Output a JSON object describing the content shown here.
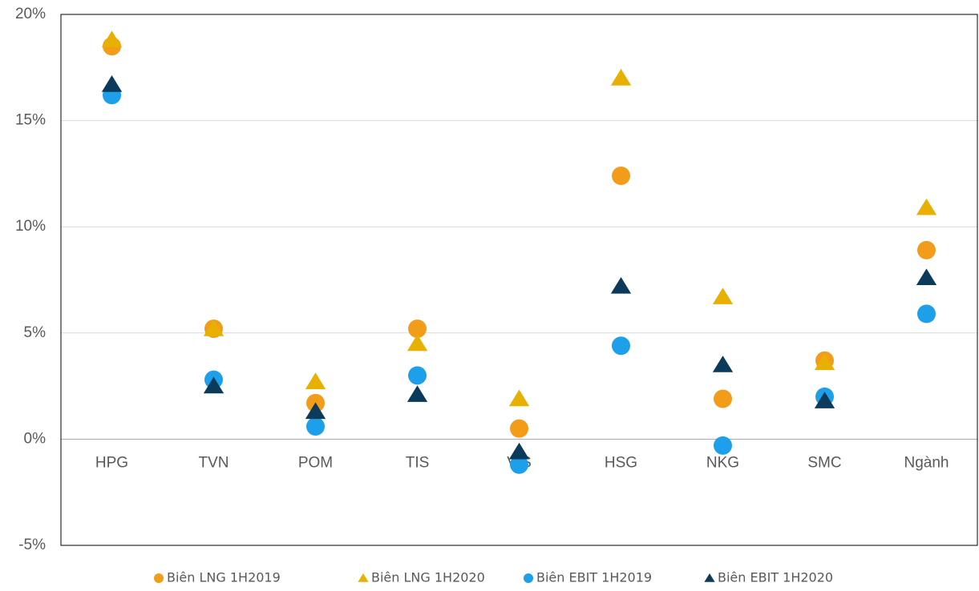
{
  "chart_data": {
    "type": "scatter",
    "categories": [
      "HPG",
      "TVN",
      "POM",
      "TIS",
      "VIS",
      "HSG",
      "NKG",
      "SMC",
      "Ngành"
    ],
    "series": [
      {
        "name": "Biên LNG 1H2019",
        "color": "#f39c1a",
        "marker": "circle",
        "values": [
          18.5,
          5.2,
          1.7,
          5.2,
          0.5,
          12.4,
          1.9,
          3.7,
          8.9
        ]
      },
      {
        "name": "Biên LNG 1H2020",
        "color": "#e8b000",
        "marker": "triangle",
        "values": [
          18.8,
          5.2,
          2.7,
          4.5,
          1.9,
          17.0,
          6.7,
          3.6,
          10.9
        ]
      },
      {
        "name": "Biên EBIT 1H2019",
        "color": "#1e9fea",
        "marker": "circle",
        "values": [
          16.2,
          2.8,
          0.6,
          3.0,
          -1.2,
          4.4,
          -0.3,
          2.0,
          5.9
        ]
      },
      {
        "name": "Biên EBIT 1H2020",
        "color": "#0b3a5a",
        "marker": "triangle",
        "values": [
          16.7,
          2.5,
          1.3,
          2.1,
          -0.6,
          7.2,
          3.5,
          1.8,
          7.6
        ]
      }
    ],
    "ylim": [
      -5,
      20
    ],
    "yticks": [
      {
        "value": -5,
        "label": "-5%"
      },
      {
        "value": 0,
        "label": "0%"
      },
      {
        "value": 5,
        "label": "5%"
      },
      {
        "value": 10,
        "label": "10%"
      },
      {
        "value": 15,
        "label": "15%"
      },
      {
        "value": 20,
        "label": "20%"
      }
    ],
    "grid": true,
    "legend": "bottom"
  }
}
